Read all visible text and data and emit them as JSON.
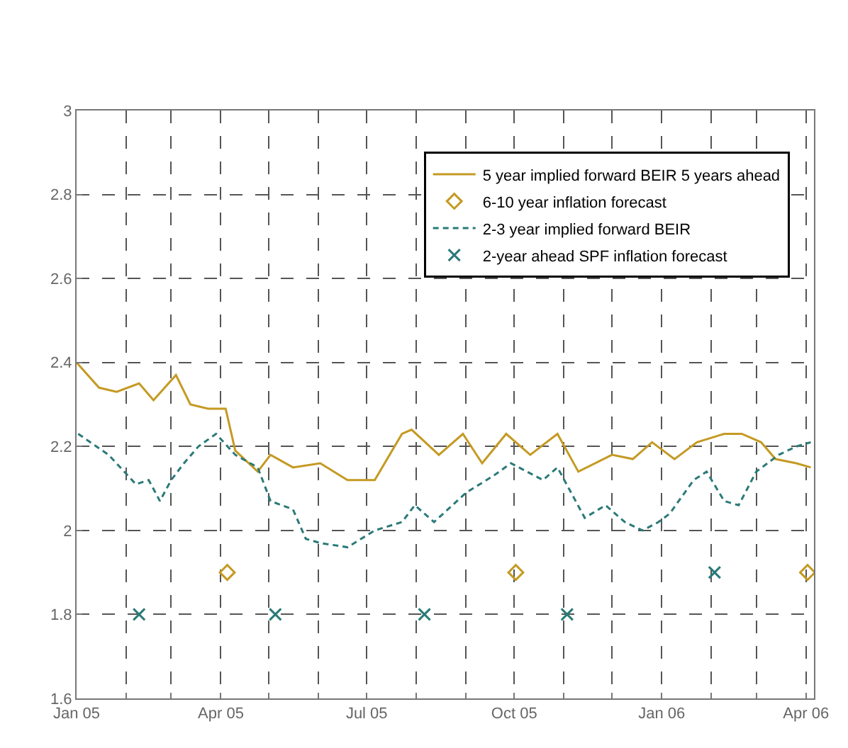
{
  "chart_data": {
    "type": "line",
    "xlim": [
      "2005-01-01",
      "2006-04-06"
    ],
    "xticks": [
      {
        "value": "2005-01-01",
        "label": "Jan 05"
      },
      {
        "value": "2005-02-01",
        "label": null
      },
      {
        "value": "2005-03-01",
        "label": null
      },
      {
        "value": "2005-04-01",
        "label": "Apr 05"
      },
      {
        "value": "2005-05-01",
        "label": null
      },
      {
        "value": "2005-06-01",
        "label": null
      },
      {
        "value": "2005-07-01",
        "label": "Jul 05"
      },
      {
        "value": "2005-08-01",
        "label": null
      },
      {
        "value": "2005-09-01",
        "label": null
      },
      {
        "value": "2005-10-01",
        "label": "Oct 05"
      },
      {
        "value": "2005-11-01",
        "label": null
      },
      {
        "value": "2005-12-01",
        "label": null
      },
      {
        "value": "2006-01-01",
        "label": "Jan 06"
      },
      {
        "value": "2006-02-01",
        "label": null
      },
      {
        "value": "2006-03-01",
        "label": null
      },
      {
        "value": "2006-04-01",
        "label": "Apr 06"
      }
    ],
    "ylim": [
      1.6,
      3
    ],
    "yticks": [
      1.6,
      1.8,
      2,
      2.2,
      2.4,
      2.6,
      2.8,
      3
    ],
    "grid": true,
    "legend": "top right",
    "series": [
      {
        "name": "5 year implied forward BEIR 5 years ahead",
        "line_style": "solid",
        "marker": "none",
        "color": "#c49a22",
        "x": [
          "2005-01-01",
          "2005-01-15",
          "2005-01-26",
          "2005-02-09",
          "2005-02-18",
          "2005-03-04",
          "2005-03-13",
          "2005-03-24",
          "2005-04-04",
          "2005-04-10",
          "2005-04-24",
          "2005-05-02",
          "2005-05-16",
          "2005-06-02",
          "2005-06-19",
          "2005-07-06",
          "2005-07-23",
          "2005-07-29",
          "2005-08-15",
          "2005-08-30",
          "2005-09-11",
          "2005-09-26",
          "2005-10-11",
          "2005-10-28",
          "2005-11-10",
          "2005-12-01",
          "2005-12-14",
          "2005-12-26",
          "2006-01-09",
          "2006-01-23",
          "2006-02-09",
          "2006-02-20",
          "2006-03-04",
          "2006-03-13",
          "2006-03-26",
          "2006-04-04"
        ],
        "values": [
          2.4,
          2.34,
          2.33,
          2.35,
          2.31,
          2.37,
          2.3,
          2.29,
          2.29,
          2.19,
          2.14,
          2.18,
          2.15,
          2.16,
          2.12,
          2.12,
          2.23,
          2.24,
          2.18,
          2.23,
          2.16,
          2.23,
          2.18,
          2.23,
          2.14,
          2.18,
          2.17,
          2.21,
          2.17,
          2.21,
          2.23,
          2.23,
          2.21,
          2.17,
          2.16,
          2.15
        ]
      },
      {
        "name": "6-10 year inflation forecast",
        "type": "scatter",
        "marker": "diamond",
        "color": "#c49a22",
        "x": [
          "2005-04-05",
          "2005-10-02",
          "2006-04-02"
        ],
        "values": [
          1.9,
          1.9,
          1.9
        ]
      },
      {
        "name": "2-3 year implied forward BEIR",
        "line_style": "dashed",
        "marker": "none",
        "color": "#2a7a78",
        "x": [
          "2005-01-02",
          "2005-01-21",
          "2005-02-07",
          "2005-02-15",
          "2005-02-22",
          "2005-03-01",
          "2005-03-09",
          "2005-03-18",
          "2005-03-29",
          "2005-04-10",
          "2005-04-24",
          "2005-05-02",
          "2005-05-16",
          "2005-05-24",
          "2005-06-02",
          "2005-06-19",
          "2005-07-06",
          "2005-07-23",
          "2005-07-31",
          "2005-08-12",
          "2005-09-01",
          "2005-09-18",
          "2005-09-29",
          "2005-10-19",
          "2005-10-28",
          "2005-11-14",
          "2005-11-27",
          "2005-12-09",
          "2005-12-20",
          "2005-12-30",
          "2006-01-06",
          "2006-01-21",
          "2006-01-29",
          "2006-02-09",
          "2006-02-18",
          "2006-03-01",
          "2006-03-15",
          "2006-03-26",
          "2006-04-04"
        ],
        "values": [
          2.23,
          2.18,
          2.11,
          2.12,
          2.07,
          2.12,
          2.16,
          2.2,
          2.23,
          2.18,
          2.15,
          2.07,
          2.05,
          1.98,
          1.97,
          1.96,
          2.0,
          2.02,
          2.06,
          2.02,
          2.09,
          2.13,
          2.16,
          2.12,
          2.15,
          2.03,
          2.06,
          2.02,
          2.0,
          2.02,
          2.04,
          2.12,
          2.14,
          2.07,
          2.06,
          2.14,
          2.18,
          2.2,
          2.21
        ]
      },
      {
        "name": "2-year ahead SPF inflation forecast",
        "type": "scatter",
        "marker": "cross",
        "color": "#2a7a78",
        "x": [
          "2005-02-09",
          "2005-05-05",
          "2005-08-06",
          "2005-11-03",
          "2006-02-03"
        ],
        "values": [
          1.8,
          1.8,
          1.8,
          1.8,
          1.9
        ]
      }
    ]
  }
}
